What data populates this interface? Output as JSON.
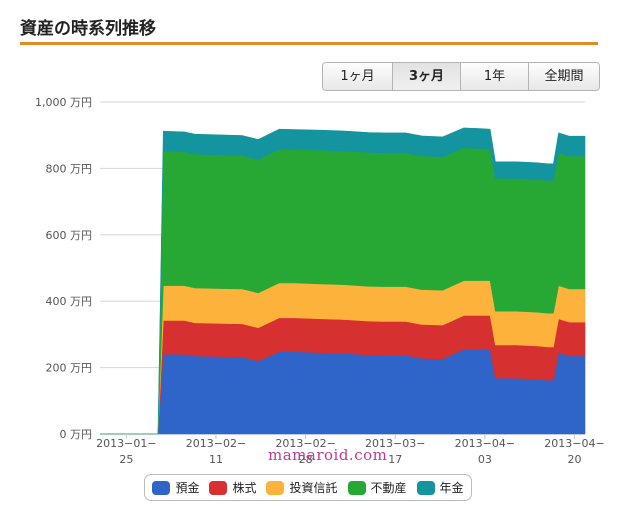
{
  "header": {
    "title": "資産の時系列推移"
  },
  "range_buttons": [
    {
      "label": "1ヶ月",
      "active": false
    },
    {
      "label": "3ヶ月",
      "active": true
    },
    {
      "label": "1年",
      "active": false
    },
    {
      "label": "全期間",
      "active": false
    }
  ],
  "watermark": "mamaroid.com",
  "colors": {
    "accent_rule": "#e38b21"
  },
  "chart_data": {
    "type": "area",
    "stacked": true,
    "ylim": [
      0,
      1000
    ],
    "y_ticks": [
      {
        "value": 0,
        "label": "0 万円"
      },
      {
        "value": 200,
        "label": "200 万円"
      },
      {
        "value": 400,
        "label": "400 万円"
      },
      {
        "value": 600,
        "label": "600 万円"
      },
      {
        "value": 800,
        "label": "800 万円"
      },
      {
        "value": 1000,
        "label": "1,000 万円"
      }
    ],
    "x_range": [
      "2013-01-20",
      "2013-04-22"
    ],
    "x_ticks": [
      {
        "date": "2013-01-25",
        "line1": "2013−01−",
        "line2": "25"
      },
      {
        "date": "2013-02-11",
        "line1": "2013−02−",
        "line2": "11"
      },
      {
        "date": "2013-02-28",
        "line1": "2013−02−",
        "line2": "28"
      },
      {
        "date": "2013-03-17",
        "line1": "2013−03−",
        "line2": "17"
      },
      {
        "date": "2013-04-03",
        "line1": "2013−04−",
        "line2": "03"
      },
      {
        "date": "2013-04-20",
        "line1": "2013−04−",
        "line2": "20"
      }
    ],
    "x": [
      "2013-01-20",
      "2013-01-31",
      "2013-02-01",
      "2013-02-05",
      "2013-02-07",
      "2013-02-12",
      "2013-02-16",
      "2013-02-19",
      "2013-02-23",
      "2013-02-26",
      "2013-03-03",
      "2013-03-07",
      "2013-03-12",
      "2013-03-15",
      "2013-03-19",
      "2013-03-22",
      "2013-03-26",
      "2013-03-30",
      "2013-04-02",
      "2013-04-04",
      "2013-04-05",
      "2013-04-09",
      "2013-04-13",
      "2013-04-15",
      "2013-04-16",
      "2013-04-17",
      "2013-04-19",
      "2013-04-22"
    ],
    "series": [
      {
        "name": "預金",
        "color": "#2f64c8",
        "values": [
          0,
          0,
          240,
          240,
          235,
          233,
          232,
          220,
          248,
          248,
          245,
          243,
          238,
          237,
          237,
          228,
          226,
          255,
          255,
          255,
          168,
          168,
          165,
          162,
          162,
          245,
          235,
          235
        ]
      },
      {
        "name": "株式",
        "color": "#d63031",
        "values": [
          0,
          0,
          102,
          102,
          100,
          100,
          100,
          100,
          102,
          102,
          102,
          102,
          102,
          102,
          102,
          102,
          102,
          102,
          102,
          102,
          100,
          100,
          100,
          100,
          100,
          102,
          102,
          102
        ]
      },
      {
        "name": "投資信託",
        "color": "#fcb23b",
        "values": [
          0,
          0,
          105,
          105,
          105,
          105,
          105,
          105,
          105,
          105,
          105,
          105,
          105,
          105,
          105,
          105,
          105,
          105,
          105,
          105,
          102,
          102,
          102,
          102,
          102,
          100,
          100,
          100
        ]
      },
      {
        "name": "不動産",
        "color": "#27a835",
        "values": [
          0,
          0,
          405,
          403,
          403,
          403,
          402,
          402,
          403,
          402,
          403,
          403,
          403,
          403,
          403,
          403,
          402,
          400,
          398,
          396,
          400,
          400,
          400,
          400,
          400,
          400,
          400,
          400
        ]
      },
      {
        "name": "年金",
        "color": "#14949e",
        "values": [
          0,
          0,
          60,
          60,
          60,
          60,
          60,
          60,
          60,
          60,
          60,
          60,
          60,
          60,
          60,
          60,
          60,
          60,
          60,
          60,
          50,
          50,
          50,
          50,
          50,
          60,
          60,
          60
        ]
      }
    ]
  }
}
